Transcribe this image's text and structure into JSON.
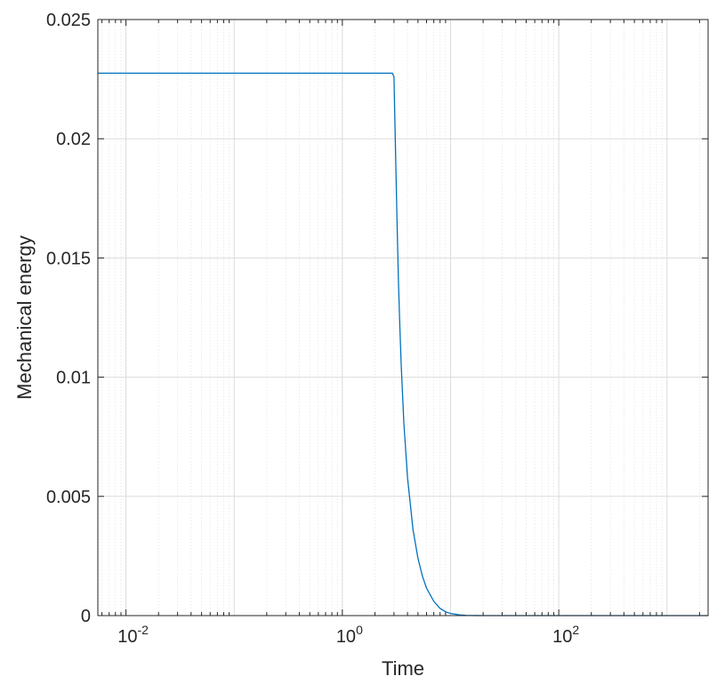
{
  "chart_data": {
    "type": "line",
    "title": "",
    "xlabel": "Time",
    "ylabel": "Mechanical energy",
    "x_scale": "log",
    "xlim": [
      0.0055,
      2400
    ],
    "ylim": [
      0,
      0.025
    ],
    "grid": true,
    "minor_grid": true,
    "line_color": "#0072BD",
    "y_ticks": [
      0,
      0.005,
      0.01,
      0.015,
      0.02,
      0.025
    ],
    "y_tick_labels": [
      "0",
      "0.005",
      "0.01",
      "0.015",
      "0.02",
      "0.025"
    ],
    "x_ticks": [
      {
        "value": 0.01,
        "base": "10",
        "exp": "-2"
      },
      {
        "value": 1,
        "base": "10",
        "exp": "0"
      },
      {
        "value": 100,
        "base": "10",
        "exp": "2"
      }
    ],
    "series": [
      {
        "x": [
          0.0055,
          0.1,
          1,
          2.5,
          2.9,
          3.0,
          3.1,
          3.2,
          3.3,
          3.4,
          3.5,
          3.7,
          4.0,
          4.5,
          5.0,
          5.5,
          6.0,
          7.0,
          8.0,
          9.0,
          10,
          12,
          14,
          17,
          20,
          30,
          50,
          100,
          1000,
          2400
        ],
        "y": [
          0.02275,
          0.02275,
          0.02275,
          0.02275,
          0.02275,
          0.0226,
          0.0195,
          0.0166,
          0.014,
          0.0121,
          0.0105,
          0.0081,
          0.0058,
          0.0036,
          0.0024,
          0.00165,
          0.00115,
          0.0006,
          0.0003,
          0.00016,
          9e-05,
          3e-05,
          1e-05,
          3e-06,
          1e-06,
          0,
          0,
          0,
          0,
          0
        ]
      }
    ]
  }
}
